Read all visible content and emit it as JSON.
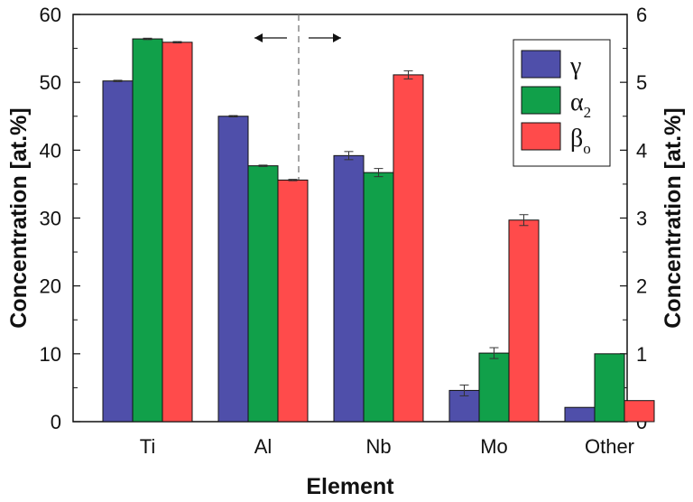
{
  "chart_data": {
    "type": "bar",
    "title": "",
    "xlabel": "Element",
    "ylabel": "Concentration [at.%]",
    "y2label": "Concentration [at.%]",
    "categories": [
      "Ti",
      "Al",
      "Nb",
      "Mo",
      "Other"
    ],
    "ylim": [
      0,
      60
    ],
    "y2lim": [
      0,
      6
    ],
    "yticks": [
      0,
      10,
      20,
      30,
      40,
      50,
      60
    ],
    "y2ticks": [
      0,
      1,
      2,
      3,
      4,
      5,
      6
    ],
    "right_axis_categories": [
      "Nb",
      "Mo",
      "Other"
    ],
    "series": [
      {
        "name": "γ",
        "legend_base": "γ",
        "legend_sub": "",
        "color": "#4f4faa",
        "values": [
          50.2,
          45.0,
          3.92,
          0.46,
          0.21
        ],
        "errors": [
          0.1,
          0.1,
          0.06,
          0.08,
          0.0
        ]
      },
      {
        "name": "α2",
        "legend_base": "α",
        "legend_sub": "2",
        "color": "#11a04a",
        "values": [
          56.4,
          37.7,
          3.67,
          1.01,
          1.0
        ],
        "errors": [
          0.1,
          0.1,
          0.06,
          0.08,
          0.0
        ]
      },
      {
        "name": "βo",
        "legend_base": "β",
        "legend_sub": "o",
        "color": "#ff4b4b",
        "values": [
          55.9,
          35.6,
          5.11,
          2.97,
          0.31
        ],
        "errors": [
          0.1,
          0.1,
          0.06,
          0.08,
          0.0
        ]
      }
    ],
    "legend_position": "top-right",
    "grid": false,
    "annotations": [
      {
        "type": "arrow",
        "direction": "left",
        "meaning": "left axis"
      },
      {
        "type": "arrow",
        "direction": "right",
        "meaning": "right axis"
      },
      {
        "type": "dashed-divider",
        "between": [
          "Al",
          "Nb"
        ]
      }
    ]
  }
}
